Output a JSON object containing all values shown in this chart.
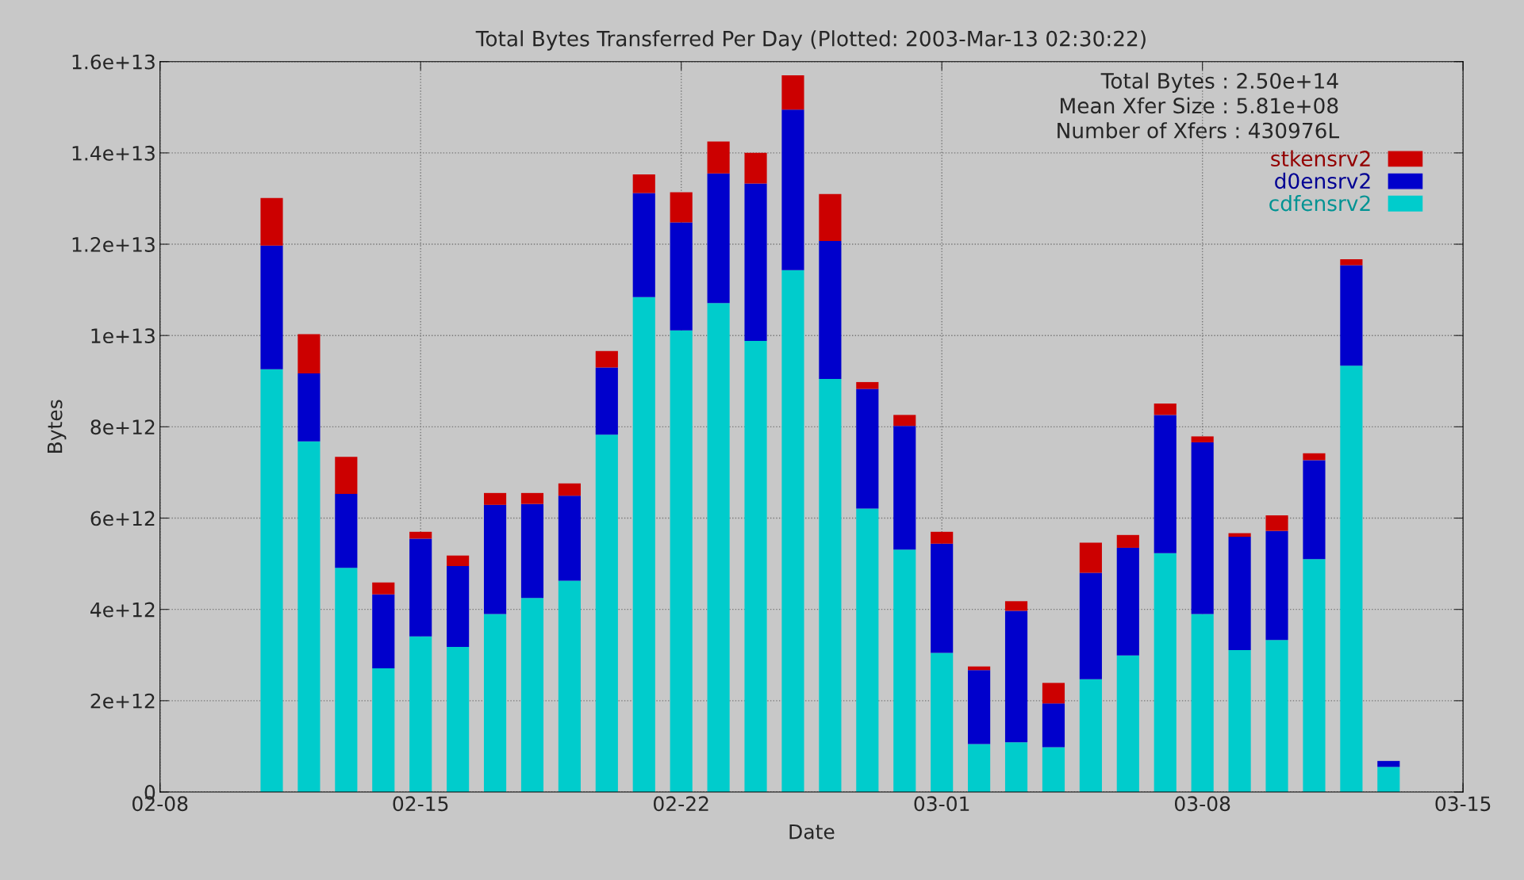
{
  "chart_data": {
    "type": "bar",
    "stacked": true,
    "title": "Total Bytes Transferred Per Day (Plotted: 2003-Mar-13 02:30:22)",
    "xlabel": "Date",
    "ylabel": "Bytes",
    "x": [
      "2003-02-11",
      "2003-02-12",
      "2003-02-13",
      "2003-02-14",
      "2003-02-15",
      "2003-02-16",
      "2003-02-17",
      "2003-02-18",
      "2003-02-19",
      "2003-02-20",
      "2003-02-21",
      "2003-02-22",
      "2003-02-23",
      "2003-02-24",
      "2003-02-25",
      "2003-02-26",
      "2003-02-27",
      "2003-02-28",
      "2003-03-01",
      "2003-03-02",
      "2003-03-03",
      "2003-03-04",
      "2003-03-05",
      "2003-03-06",
      "2003-03-07",
      "2003-03-08",
      "2003-03-09",
      "2003-03-10",
      "2003-03-11",
      "2003-03-12",
      "2003-03-13"
    ],
    "series": [
      {
        "name": "cdfensrv2",
        "color": "#00cccc",
        "values": [
          9260000000000.0,
          7680000000000.0,
          4910000000000.0,
          2710000000000.0,
          3410000000000.0,
          3180000000000.0,
          3900000000000.0,
          4250000000000.0,
          4630000000000.0,
          7830000000000.0,
          10840000000000.0,
          10110000000000.0,
          10710000000000.0,
          9880000000000.0,
          11430000000000.0,
          9050000000000.0,
          6210000000000.0,
          5310000000000.0,
          3050000000000.0,
          1050000000000.0,
          1090000000000.0,
          980000000000.0,
          2470000000000.0,
          2990000000000.0,
          5230000000000.0,
          3900000000000.0,
          3110000000000.0,
          3330000000000.0,
          5100000000000.0,
          9340000000000.0,
          550000000000.0
        ]
      },
      {
        "name": "d0ensrv2",
        "color": "#0000cc",
        "values": [
          2710000000000.0,
          1490000000000.0,
          1620000000000.0,
          1620000000000.0,
          2140000000000.0,
          1770000000000.0,
          2390000000000.0,
          2060000000000.0,
          1860000000000.0,
          1470000000000.0,
          2280000000000.0,
          2370000000000.0,
          2840000000000.0,
          3450000000000.0,
          3520000000000.0,
          3020000000000.0,
          2620000000000.0,
          2710000000000.0,
          2390000000000.0,
          1620000000000.0,
          2880000000000.0,
          960000000000.0,
          2330000000000.0,
          2360000000000.0,
          3030000000000.0,
          3760000000000.0,
          2480000000000.0,
          2390000000000.0,
          2170000000000.0,
          2200000000000.0,
          130000000000.0
        ]
      },
      {
        "name": "stkensrv2",
        "color": "#cc0000",
        "values": [
          1040000000000.0,
          860000000000.0,
          810000000000.0,
          260000000000.0,
          150000000000.0,
          230000000000.0,
          260000000000.0,
          240000000000.0,
          270000000000.0,
          360000000000.0,
          410000000000.0,
          660000000000.0,
          700000000000.0,
          670000000000.0,
          750000000000.0,
          1030000000000.0,
          150000000000.0,
          240000000000.0,
          260000000000.0,
          80000000000.0,
          210000000000.0,
          450000000000.0,
          660000000000.0,
          280000000000.0,
          250000000000.0,
          130000000000.0,
          80000000000.0,
          340000000000.0,
          150000000000.0,
          130000000000.0,
          0
        ]
      }
    ],
    "xlim": [
      "2003-02-08",
      "2003-03-15"
    ],
    "xticks": [
      {
        "value": "2003-02-08",
        "label": "02-08"
      },
      {
        "value": "2003-02-15",
        "label": "02-15"
      },
      {
        "value": "2003-02-22",
        "label": "02-22"
      },
      {
        "value": "2003-03-01",
        "label": "03-01"
      },
      {
        "value": "2003-03-08",
        "label": "03-08"
      },
      {
        "value": "2003-03-15",
        "label": "03-15"
      }
    ],
    "ylim": [
      0,
      16000000000000.0
    ],
    "yticks": [
      0,
      {
        "value": 2000000000000.0,
        "label": "2e+12"
      },
      {
        "value": 4000000000000.0,
        "label": "4e+12"
      },
      {
        "value": 6000000000000.0,
        "label": "6e+12"
      },
      {
        "value": 8000000000000.0,
        "label": "8e+12"
      },
      {
        "value": 10000000000000.0,
        "label": "1e+13"
      },
      {
        "value": 12000000000000.0,
        "label": "1.2e+13"
      },
      {
        "value": 14000000000000.0,
        "label": "1.4e+13"
      },
      {
        "value": 16000000000000.0,
        "label": "1.6e+13"
      }
    ],
    "annotations": [
      "Total Bytes : 2.50e+14",
      "Mean Xfer Size : 5.81e+08",
      "Number of Xfers : 430976L"
    ],
    "grid": true,
    "legend": "top right"
  }
}
